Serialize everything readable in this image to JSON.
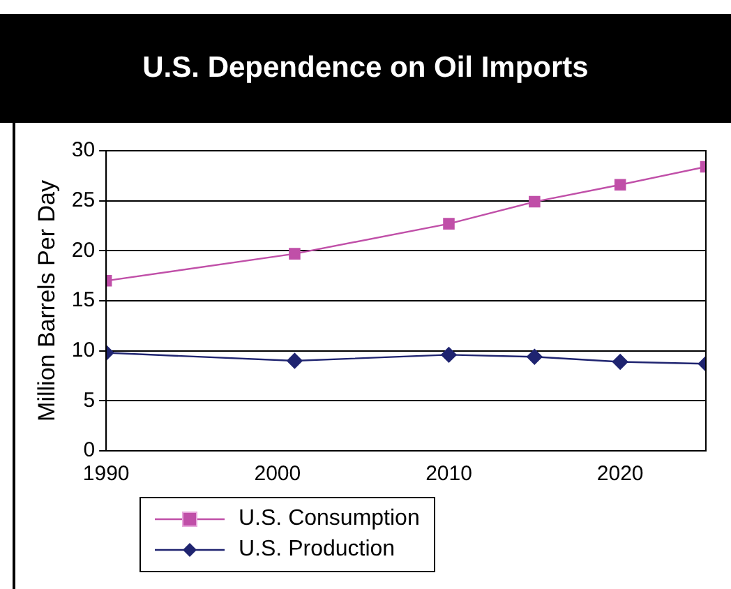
{
  "chart_data": {
    "type": "line",
    "title": "U.S. Dependence on Oil Imports",
    "ylabel": "Million Barrels Per Day",
    "x": [
      1990,
      2001,
      2010,
      2015,
      2020,
      2025
    ],
    "series": [
      {
        "name": "U.S. Consumption",
        "color": "#c04fa8",
        "marker": "square",
        "values": [
          17.0,
          19.7,
          22.7,
          24.9,
          26.6,
          28.4
        ]
      },
      {
        "name": "U.S. Production",
        "color": "#1f2470",
        "marker": "diamond",
        "values": [
          9.8,
          9.0,
          9.6,
          9.4,
          8.9,
          8.7
        ]
      }
    ],
    "xlim": [
      1990,
      2025
    ],
    "xticks": [
      1990,
      2000,
      2010,
      2020
    ],
    "ylim": [
      0,
      30
    ],
    "yticks": [
      0,
      5,
      10,
      15,
      20,
      25,
      30
    ],
    "grid": "y",
    "legend": "bottom left",
    "line_style": "solid"
  }
}
